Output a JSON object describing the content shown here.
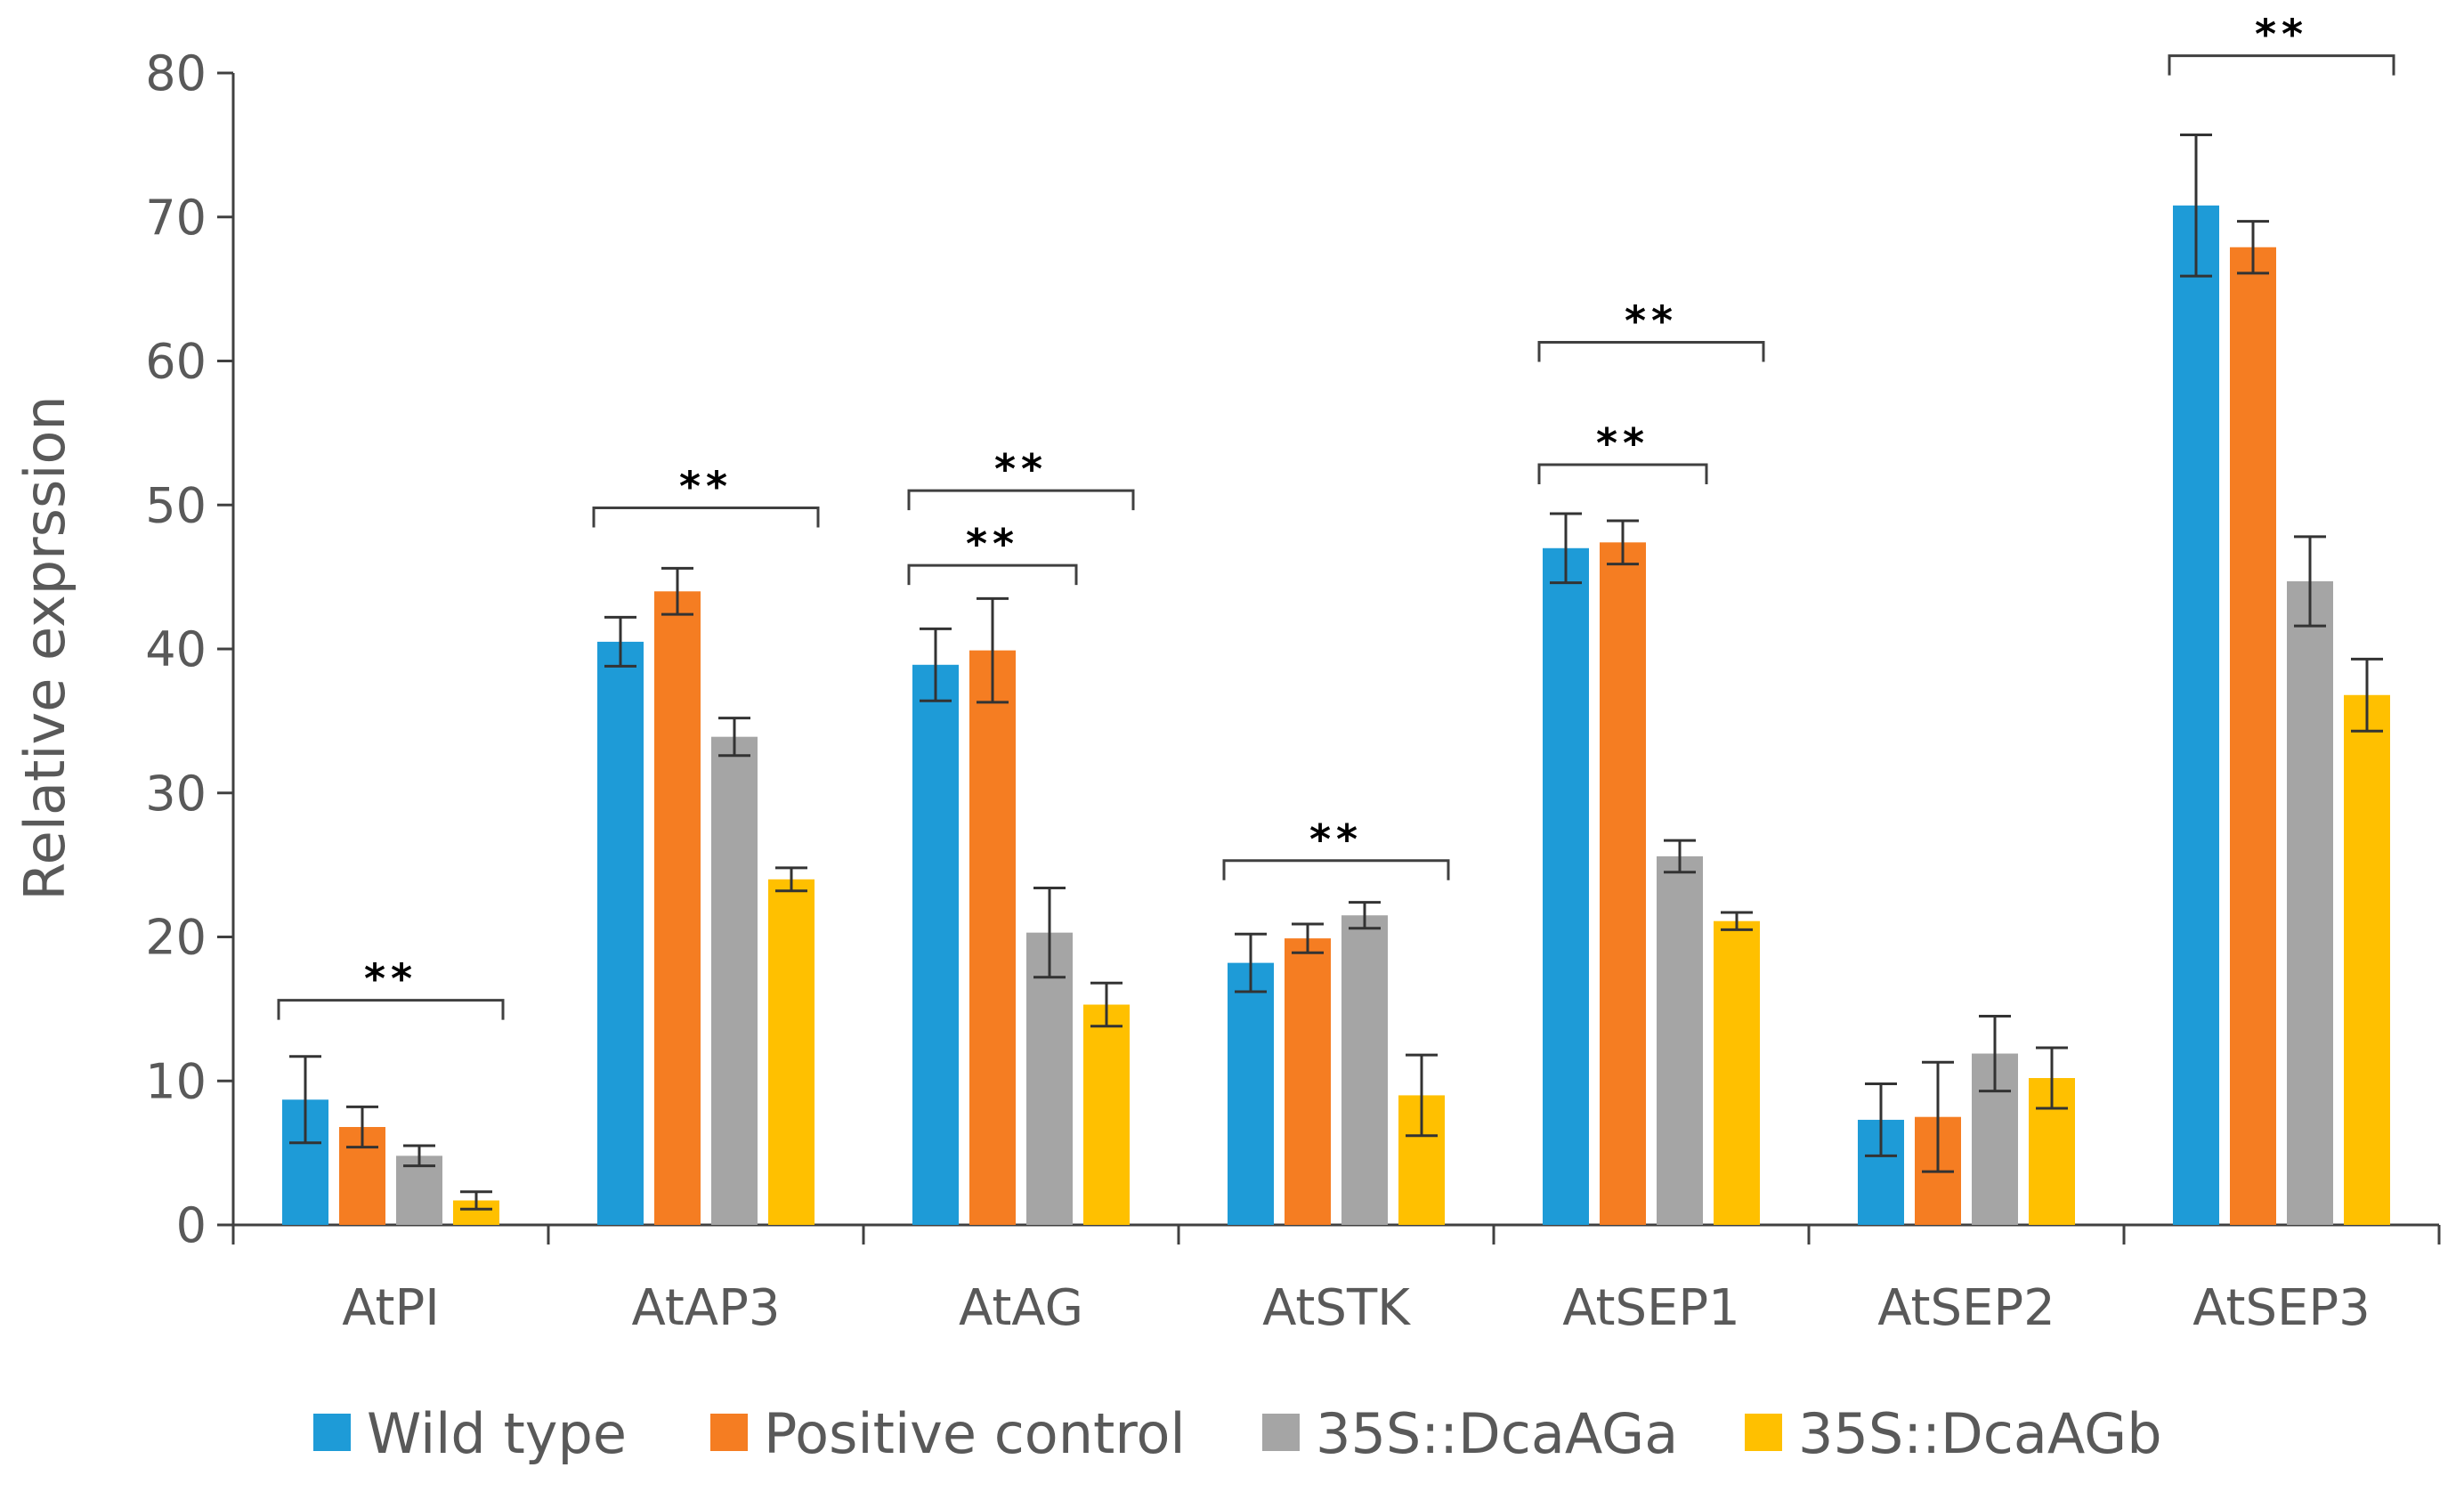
{
  "chart_data": {
    "type": "bar",
    "title": "",
    "xlabel": "",
    "ylabel": "Relative exprssion",
    "ylim": [
      0,
      80
    ],
    "yticks": [
      0,
      10,
      20,
      30,
      40,
      50,
      60,
      70,
      80
    ],
    "grid": false,
    "legend_position": "bottom",
    "categories": [
      "AtPI",
      "AtAP3",
      "AtAG",
      "AtSTK",
      "AtSEP1",
      "AtSEP2",
      "AtSEP3"
    ],
    "series": [
      {
        "name": "Wild type",
        "color": "#1E9BD7",
        "values": [
          8.7,
          40.5,
          38.9,
          18.2,
          47.0,
          7.3,
          70.8
        ],
        "errors": [
          3.0,
          1.7,
          2.5,
          2.0,
          2.4,
          2.5,
          4.9
        ]
      },
      {
        "name": "Positive control",
        "color": "#F57D22",
        "values": [
          6.8,
          44.0,
          39.9,
          19.9,
          47.4,
          7.5,
          67.9
        ],
        "errors": [
          1.4,
          1.6,
          3.6,
          1.0,
          1.5,
          3.8,
          1.8
        ]
      },
      {
        "name": "35S::DcaAGa",
        "color": "#A5A5A5",
        "values": [
          4.8,
          33.9,
          20.3,
          21.5,
          25.6,
          11.9,
          44.7
        ],
        "errors": [
          0.7,
          1.3,
          3.1,
          0.9,
          1.1,
          2.6,
          3.1
        ]
      },
      {
        "name": "35S::DcaAGb",
        "color": "#FFC000",
        "values": [
          1.7,
          24.0,
          15.3,
          9.0,
          21.1,
          10.2,
          36.8
        ],
        "errors": [
          0.6,
          0.8,
          1.5,
          2.8,
          0.6,
          2.1,
          2.5
        ]
      }
    ],
    "significance": [
      {
        "category": 0,
        "from": 0,
        "to": 3,
        "y": 15.6,
        "label": "**"
      },
      {
        "category": 1,
        "from": 0,
        "to": 3,
        "y": 49.8,
        "label": "**"
      },
      {
        "category": 2,
        "from": 0,
        "to": 2,
        "y": 45.8,
        "label": "**"
      },
      {
        "category": 2,
        "from": 0,
        "to": 3,
        "y": 51.0,
        "label": "**"
      },
      {
        "category": 3,
        "from": 0,
        "to": 3,
        "y": 25.3,
        "label": "**"
      },
      {
        "category": 4,
        "from": 0,
        "to": 2,
        "y": 52.8,
        "label": "**"
      },
      {
        "category": 4,
        "from": 0,
        "to": 3,
        "y": 61.3,
        "label": "**"
      },
      {
        "category": 6,
        "from": 0,
        "to": 3,
        "y": 81.2,
        "label": "**"
      }
    ]
  }
}
